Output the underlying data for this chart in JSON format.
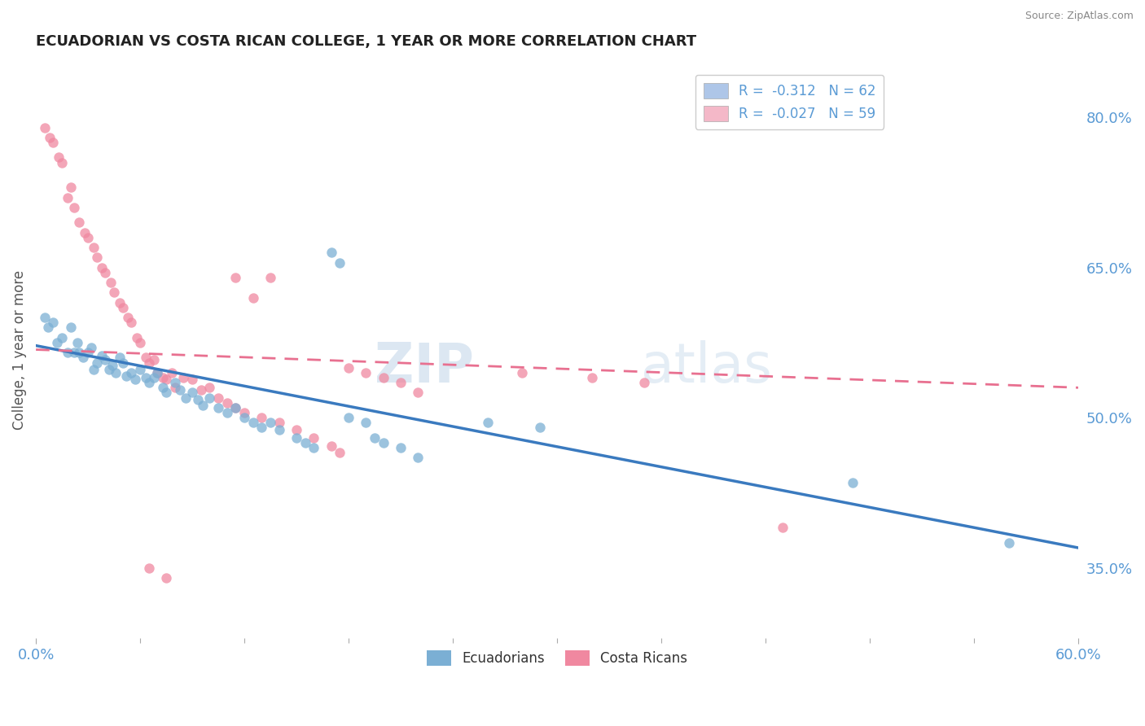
{
  "title": "ECUADORIAN VS COSTA RICAN COLLEGE, 1 YEAR OR MORE CORRELATION CHART",
  "source": "Source: ZipAtlas.com",
  "ylabel": "College, 1 year or more",
  "ylabel_right_ticks": [
    "35.0%",
    "50.0%",
    "65.0%",
    "80.0%"
  ],
  "ylabel_right_values": [
    0.35,
    0.5,
    0.65,
    0.8
  ],
  "xmin": 0.0,
  "xmax": 0.6,
  "ymin": 0.28,
  "ymax": 0.855,
  "legend_blue_label": "R =  -0.312   N = 62",
  "legend_pink_label": "R =  -0.027   N = 59",
  "legend_blue_color": "#aec6e8",
  "legend_pink_color": "#f4b8c8",
  "ecuadorians_color": "#7bafd4",
  "costa_ricans_color": "#f088a0",
  "trendline_blue_color": "#3a7abf",
  "trendline_pink_color": "#e87090",
  "trendline_blue_x0": 0.0,
  "trendline_blue_x1": 0.6,
  "trendline_blue_y0": 0.572,
  "trendline_blue_y1": 0.37,
  "trendline_pink_x0": 0.0,
  "trendline_pink_x1": 0.6,
  "trendline_pink_y0": 0.568,
  "trendline_pink_y1": 0.53,
  "watermark_ZIP": "ZIP",
  "watermark_atlas": "atlas",
  "ecuadorians_x": [
    0.005,
    0.007,
    0.01,
    0.012,
    0.015,
    0.018,
    0.02,
    0.022,
    0.024,
    0.025,
    0.027,
    0.03,
    0.032,
    0.033,
    0.035,
    0.038,
    0.04,
    0.042,
    0.044,
    0.046,
    0.048,
    0.05,
    0.052,
    0.055,
    0.057,
    0.06,
    0.063,
    0.065,
    0.068,
    0.07,
    0.073,
    0.075,
    0.08,
    0.083,
    0.086,
    0.09,
    0.093,
    0.096,
    0.1,
    0.105,
    0.11,
    0.115,
    0.12,
    0.125,
    0.13,
    0.135,
    0.14,
    0.15,
    0.155,
    0.16,
    0.17,
    0.175,
    0.18,
    0.19,
    0.195,
    0.2,
    0.21,
    0.22,
    0.26,
    0.29,
    0.47,
    0.56
  ],
  "ecuadorians_y": [
    0.6,
    0.59,
    0.595,
    0.575,
    0.58,
    0.565,
    0.59,
    0.565,
    0.575,
    0.565,
    0.56,
    0.565,
    0.57,
    0.548,
    0.555,
    0.562,
    0.558,
    0.548,
    0.552,
    0.545,
    0.56,
    0.555,
    0.542,
    0.545,
    0.538,
    0.548,
    0.54,
    0.535,
    0.54,
    0.545,
    0.53,
    0.525,
    0.535,
    0.528,
    0.52,
    0.525,
    0.518,
    0.512,
    0.52,
    0.51,
    0.505,
    0.51,
    0.5,
    0.495,
    0.49,
    0.495,
    0.488,
    0.48,
    0.475,
    0.47,
    0.665,
    0.655,
    0.5,
    0.495,
    0.48,
    0.475,
    0.47,
    0.46,
    0.495,
    0.49,
    0.435,
    0.375
  ],
  "costa_ricans_x": [
    0.005,
    0.008,
    0.01,
    0.013,
    0.015,
    0.018,
    0.02,
    0.022,
    0.025,
    0.028,
    0.03,
    0.033,
    0.035,
    0.038,
    0.04,
    0.043,
    0.045,
    0.048,
    0.05,
    0.053,
    0.055,
    0.058,
    0.06,
    0.063,
    0.065,
    0.068,
    0.07,
    0.073,
    0.075,
    0.078,
    0.08,
    0.085,
    0.09,
    0.095,
    0.1,
    0.105,
    0.11,
    0.115,
    0.12,
    0.13,
    0.14,
    0.15,
    0.16,
    0.17,
    0.175,
    0.18,
    0.19,
    0.2,
    0.21,
    0.22,
    0.115,
    0.125,
    0.135,
    0.28,
    0.32,
    0.35,
    0.065,
    0.075,
    0.43
  ],
  "costa_ricans_y": [
    0.79,
    0.78,
    0.775,
    0.76,
    0.755,
    0.72,
    0.73,
    0.71,
    0.695,
    0.685,
    0.68,
    0.67,
    0.66,
    0.65,
    0.645,
    0.635,
    0.625,
    0.615,
    0.61,
    0.6,
    0.595,
    0.58,
    0.575,
    0.56,
    0.555,
    0.558,
    0.545,
    0.54,
    0.538,
    0.545,
    0.53,
    0.54,
    0.538,
    0.528,
    0.53,
    0.52,
    0.515,
    0.51,
    0.505,
    0.5,
    0.495,
    0.488,
    0.48,
    0.472,
    0.465,
    0.55,
    0.545,
    0.54,
    0.535,
    0.525,
    0.64,
    0.62,
    0.64,
    0.545,
    0.54,
    0.535,
    0.35,
    0.34,
    0.39
  ]
}
